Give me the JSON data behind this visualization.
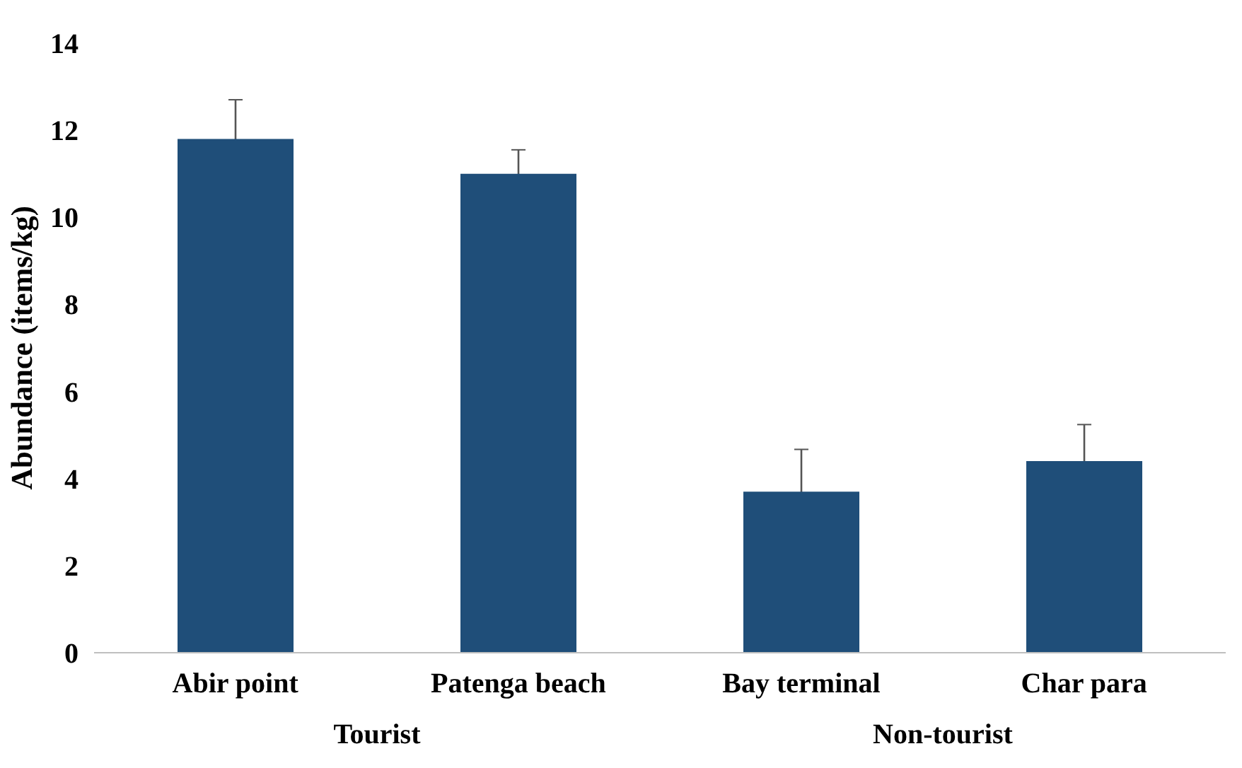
{
  "chart_data": {
    "type": "bar",
    "ylabel": "Abundance (items/kg)",
    "categories": [
      "Abir point",
      "Patenga beach",
      "Bay terminal",
      "Char para"
    ],
    "values": [
      11.8,
      11.0,
      3.7,
      4.4
    ],
    "errors": [
      0.9,
      0.55,
      0.97,
      0.84
    ],
    "color": "#1f4e79",
    "ylim": [
      0,
      14
    ],
    "yticks": [
      0,
      2,
      4,
      6,
      8,
      10,
      12,
      14
    ],
    "grid": false,
    "annotations": [
      "Tourist",
      "Non-tourist"
    ]
  }
}
